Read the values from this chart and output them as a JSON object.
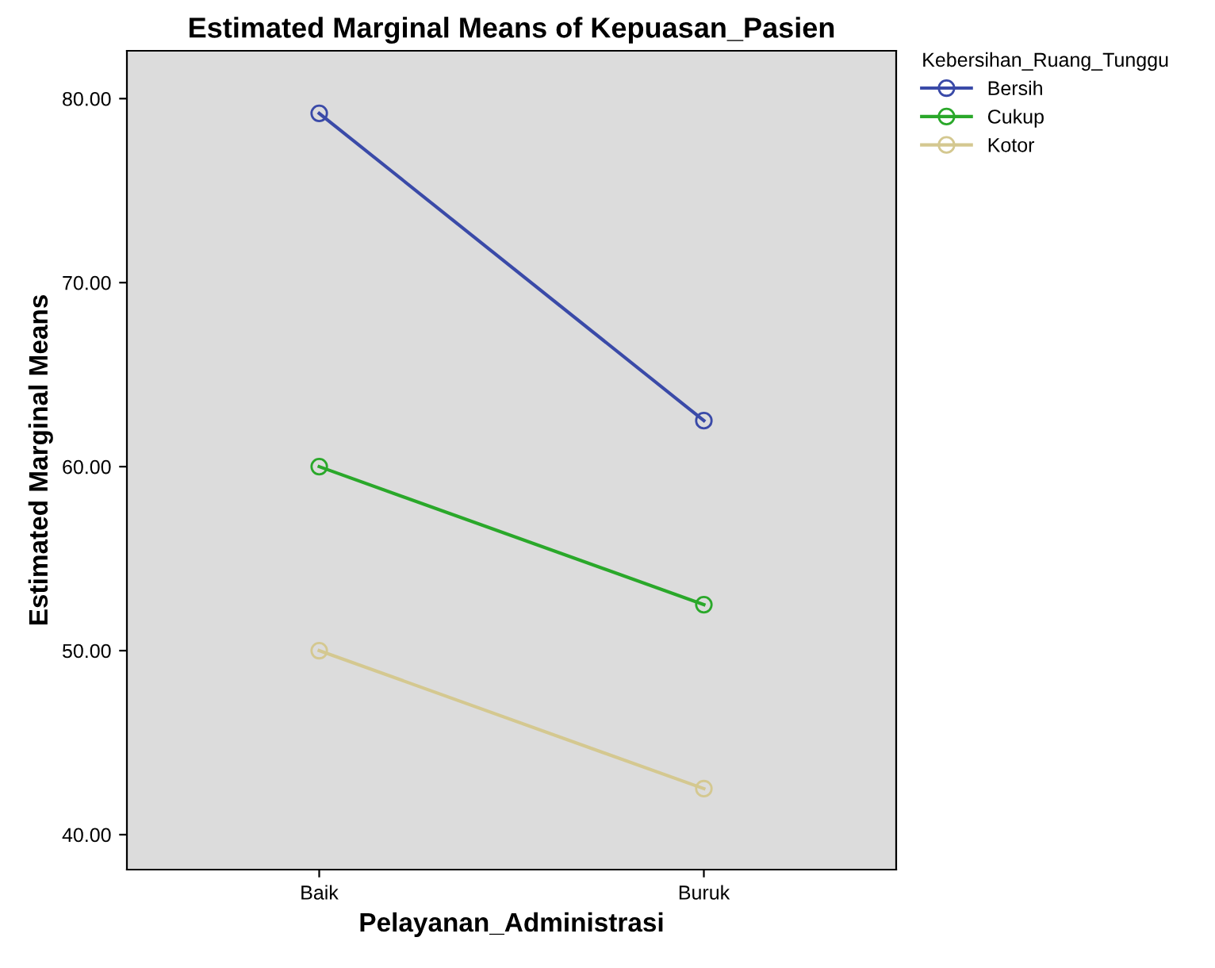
{
  "chart_data": {
    "type": "line",
    "title": "Estimated Marginal Means of Kepuasan_Pasien",
    "xlabel": "Pelayanan_Administrasi",
    "ylabel": "Estimated Marginal Means",
    "legend_title": "Kebersihan_Ruang_Tunggu",
    "categories": [
      "Baik",
      "Buruk"
    ],
    "series": [
      {
        "name": "Bersih",
        "color": "#3a4aa8",
        "values": [
          79.2,
          62.5
        ]
      },
      {
        "name": "Cukup",
        "color": "#2aa82a",
        "values": [
          60,
          52.5
        ]
      },
      {
        "name": "Kotor",
        "color": "#d4c890",
        "values": [
          50,
          42.5
        ]
      }
    ],
    "ylim": [
      38.1,
      82.6
    ],
    "yticks": [
      {
        "value": 40,
        "label": "40.00"
      },
      {
        "value": 50,
        "label": "50.00"
      },
      {
        "value": 60,
        "label": "60.00"
      },
      {
        "value": 70,
        "label": "70.00"
      },
      {
        "value": 80,
        "label": "80.00"
      }
    ],
    "marker": "circle",
    "line_style": "solid",
    "grid": false,
    "legend": "right"
  }
}
